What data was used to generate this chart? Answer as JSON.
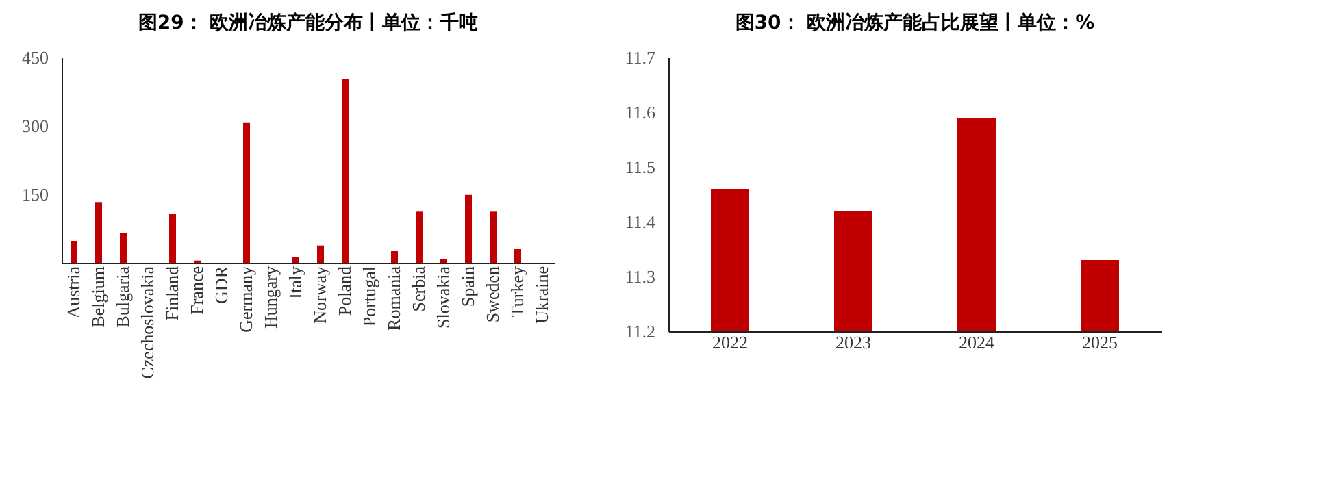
{
  "chart_data": [
    {
      "type": "bar",
      "title": "图29： 欧洲冶炼产能分布丨单位：千吨",
      "categories": [
        "Austria",
        "Belgium",
        "Bulgaria",
        "Czechoslovakia",
        "Finland",
        "France",
        "GDR",
        "Germany",
        "Hungary",
        "Italy",
        "Norway",
        "Poland",
        "Portugal",
        "Romania",
        "Serbia",
        "Slovakia",
        "Spain",
        "Sweden",
        "Turkey",
        "Ukraine"
      ],
      "values": [
        48,
        133,
        65,
        0,
        108,
        5,
        0,
        308,
        0,
        13,
        38,
        402,
        0,
        27,
        112,
        9,
        149,
        112,
        30,
        0
      ],
      "color": "#c00000",
      "ylim": [
        0,
        450
      ],
      "yticks": [
        150,
        300,
        450
      ],
      "grid": false
    },
    {
      "type": "bar",
      "title": "图30： 欧洲冶炼产能占比展望丨单位：%",
      "categories": [
        "2022",
        "2023",
        "2024",
        "2025"
      ],
      "values": [
        11.46,
        11.42,
        11.59,
        11.33
      ],
      "color": "#c00000",
      "ylim": [
        11.2,
        11.7
      ],
      "yticks": [
        11.2,
        11.3,
        11.4,
        11.5,
        11.6,
        11.7
      ],
      "grid": false
    }
  ]
}
